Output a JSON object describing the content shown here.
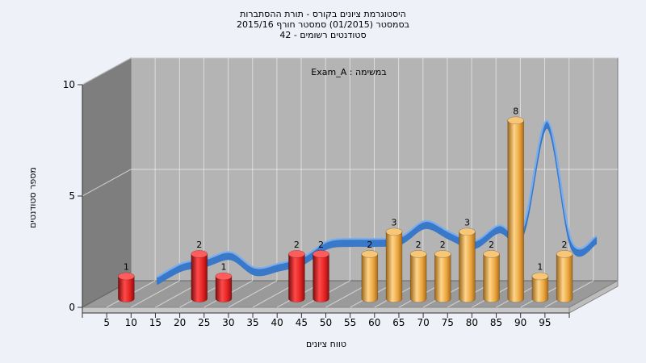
{
  "chart_data": {
    "type": "bar",
    "title_lines": [
      "היסטוגרמת ציונים בקורס - תורת ההסתברות",
      "בסמסטר  (01/2015)  סמסטר חורף 2015/16",
      "סטודנטים רשומים - 42"
    ],
    "subtitle": "במשימה : Exam_A",
    "xlabel": "טווח ציונים",
    "ylabel": "מספר סטודנטים",
    "x_ticks": [
      "5",
      "10",
      "15",
      "20",
      "25",
      "30",
      "35",
      "40",
      "45",
      "50",
      "55",
      "60",
      "65",
      "70",
      "75",
      "80",
      "85",
      "90",
      "95"
    ],
    "y_ticks": [
      "0",
      "5",
      "10"
    ],
    "ylim": [
      0,
      10
    ],
    "bars": [
      {
        "x": "5",
        "value": 1,
        "group": "fail"
      },
      {
        "x": "20",
        "value": 2,
        "group": "fail"
      },
      {
        "x": "25",
        "value": 1,
        "group": "fail"
      },
      {
        "x": "40",
        "value": 2,
        "group": "fail"
      },
      {
        "x": "45",
        "value": 2,
        "group": "fail"
      },
      {
        "x": "55",
        "value": 2,
        "group": "pass"
      },
      {
        "x": "60",
        "value": 3,
        "group": "pass"
      },
      {
        "x": "65",
        "value": 2,
        "group": "pass"
      },
      {
        "x": "70",
        "value": 2,
        "group": "pass"
      },
      {
        "x": "75",
        "value": 3,
        "group": "pass"
      },
      {
        "x": "80",
        "value": 2,
        "group": "pass"
      },
      {
        "x": "85",
        "value": 8,
        "group": "pass"
      },
      {
        "x": "90",
        "value": 1,
        "group": "pass"
      },
      {
        "x": "95",
        "value": 2,
        "group": "pass"
      }
    ],
    "curve": [
      {
        "x": "10",
        "value": 0.4
      },
      {
        "x": "15",
        "value": 1.0
      },
      {
        "x": "20",
        "value": 1.2
      },
      {
        "x": "25",
        "value": 1.5
      },
      {
        "x": "30",
        "value": 0.8
      },
      {
        "x": "35",
        "value": 1.0
      },
      {
        "x": "40",
        "value": 1.3
      },
      {
        "x": "45",
        "value": 2.0
      },
      {
        "x": "50",
        "value": 2.1
      },
      {
        "x": "55",
        "value": 2.1
      },
      {
        "x": "60",
        "value": 2.2
      },
      {
        "x": "65",
        "value": 2.9
      },
      {
        "x": "70",
        "value": 2.4
      },
      {
        "x": "75",
        "value": 2.0
      },
      {
        "x": "80",
        "value": 2.7
      },
      {
        "x": "85",
        "value": 2.6
      },
      {
        "x": "90",
        "value": 7.4
      },
      {
        "x": "95",
        "value": 2.0
      },
      {
        "x": "100",
        "value": 2.2
      }
    ],
    "colors": {
      "fail": "#e02020",
      "pass": "#e8a23a",
      "curve": "#3a78c8",
      "curve_low": "#707070",
      "back_wall": "#b4b4b4",
      "side_wall": "#7e7e7e",
      "floor": "#9a9a9a"
    },
    "grid": true
  }
}
